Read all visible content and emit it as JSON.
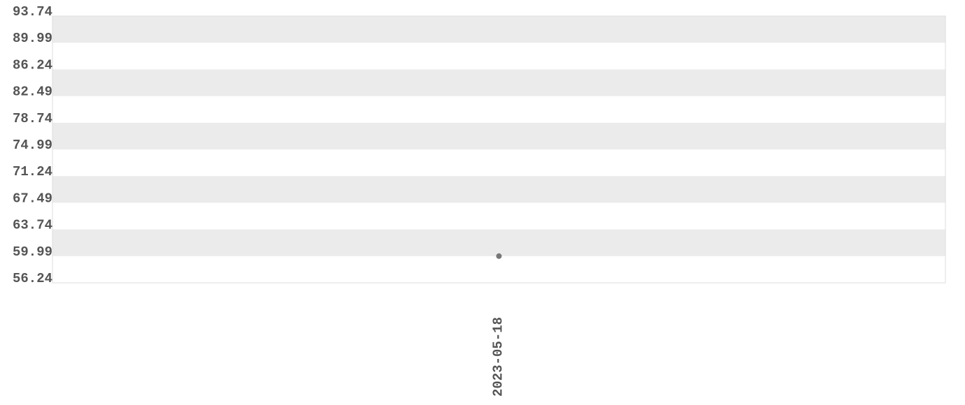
{
  "chart_data": {
    "type": "scatter",
    "title": "",
    "xlabel": "",
    "ylabel": "",
    "ylim": [
      56.24,
      93.74
    ],
    "y_ticks": [
      "56.24",
      "59.99",
      "63.74",
      "67.49",
      "71.24",
      "74.99",
      "78.74",
      "82.49",
      "86.24",
      "89.99",
      "93.74"
    ],
    "x_ticks": [
      "2023-05-18"
    ],
    "grid": "alternating horizontal bands",
    "points": [
      {
        "x": "2023-05-18",
        "y": 59.99
      }
    ],
    "colors": {
      "band": "#ebebeb",
      "point": "#777777",
      "text": "#555555",
      "border": "#dddddd"
    }
  }
}
